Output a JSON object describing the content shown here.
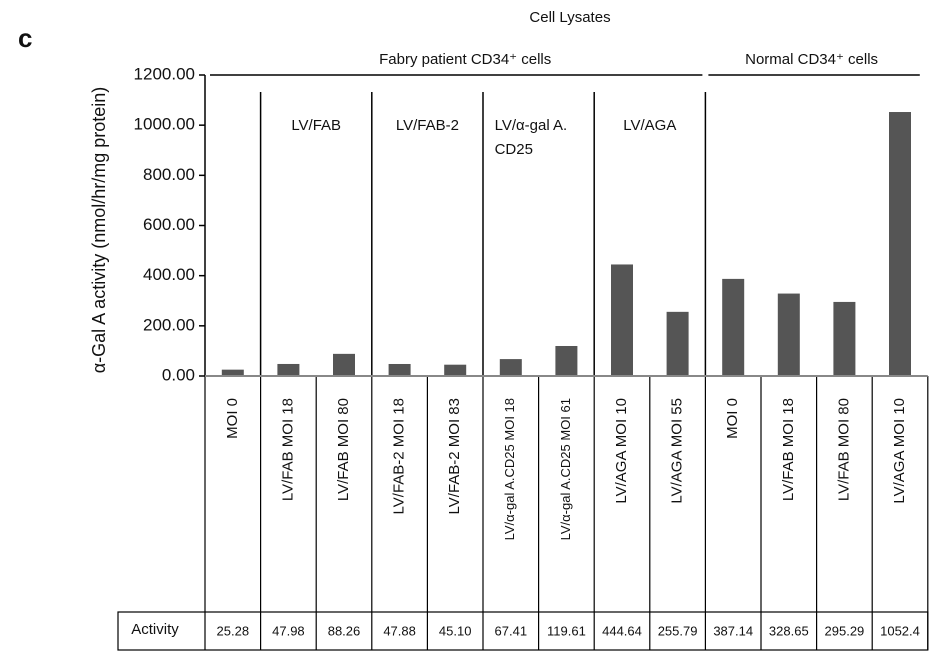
{
  "chart_data": {
    "type": "bar",
    "panel_label": "c",
    "title": "Cell Lysates",
    "y_label": "α-Gal A activity (nmol/hr/mg protein)",
    "groups": [
      "Fabry patient CD34⁺ cells",
      "Normal CD34⁺ cells"
    ],
    "subgroups": [
      [
        "LV/FAB"
      ],
      [
        "LV/FAB-2"
      ],
      [
        "LV/α-gal A.",
        "CD25"
      ],
      [
        "LV/AGA"
      ]
    ],
    "categories": [
      "MOI 0",
      "LV/FAB MOI 18",
      "LV/FAB MOI 80",
      "LV/FAB-2 MOI 18",
      "LV/FAB-2 MOI 83",
      "LV/α-gal A.CD25 MOI 18",
      "LV/α-gal A.CD25 MOI 61",
      "LV/AGA MOI 10",
      "LV/AGA MOI 55",
      "MOI 0",
      "LV/FAB MOI 18",
      "LV/FAB MOI 80",
      "LV/AGA MOI 10"
    ],
    "values": [
      25.28,
      47.98,
      88.26,
      47.88,
      45.1,
      67.41,
      119.61,
      444.64,
      255.79,
      387.14,
      328.65,
      295.29,
      1052.4
    ],
    "value_labels": [
      "25.28",
      "47.98",
      "88.26",
      "47.88",
      "45.10",
      "67.41",
      "119.61",
      "444.64",
      "255.79",
      "387.14",
      "328.65",
      "295.29",
      "1052.4"
    ],
    "table_row_label": "Activity",
    "color": "#555555",
    "ylim": [
      0,
      1200
    ],
    "yticks": [
      {
        "value": 0,
        "label": "0.00"
      },
      {
        "value": 200,
        "label": "200.00"
      },
      {
        "value": 400,
        "label": "400.00"
      },
      {
        "value": 600,
        "label": "600.00"
      },
      {
        "value": 800,
        "label": "800.00"
      },
      {
        "value": 1000,
        "label": "1000.00"
      },
      {
        "value": 1200,
        "label": "1200.00"
      }
    ]
  }
}
